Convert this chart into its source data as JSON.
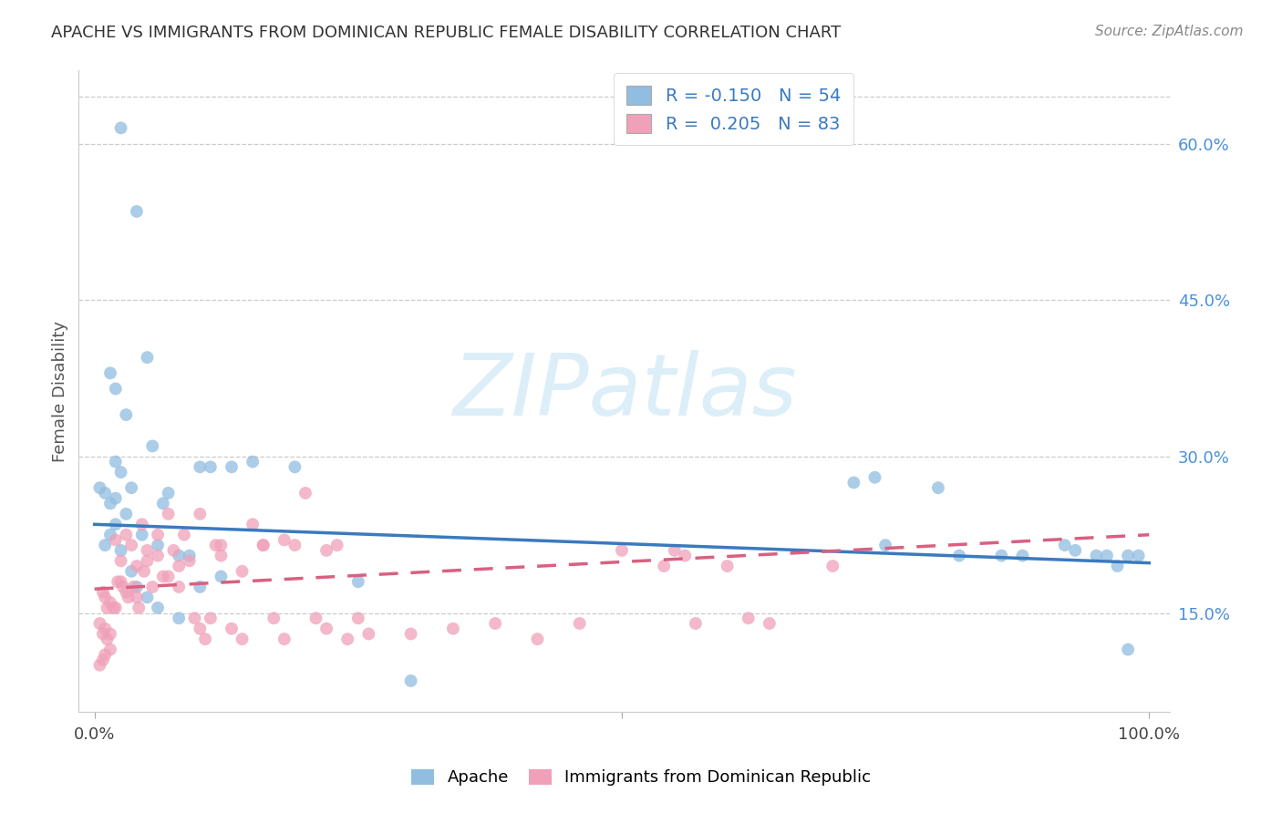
{
  "title": "APACHE VS IMMIGRANTS FROM DOMINICAN REPUBLIC FEMALE DISABILITY CORRELATION CHART",
  "source": "Source: ZipAtlas.com",
  "ylabel": "Female Disability",
  "yticks": [
    "15.0%",
    "30.0%",
    "45.0%",
    "60.0%"
  ],
  "ytick_vals": [
    0.15,
    0.3,
    0.45,
    0.6
  ],
  "xlim": [
    -0.015,
    1.02
  ],
  "ylim": [
    0.055,
    0.67
  ],
  "series1_color": "#90bde0",
  "series2_color": "#f0a0b8",
  "trendline1_color": "#3a7abf",
  "trendline2_color": "#d96080",
  "watermark_text": "ZIPatlas",
  "watermark_color": "#dceef8",
  "legend1_label": "R = -0.150   N = 54",
  "legend2_label": "R =  0.205   N = 83",
  "legend_text_color": "#3a7abf",
  "bottom_label1": "Apache",
  "bottom_label2": "Immigrants from Dominican Republic",
  "apache_x": [
    0.025,
    0.04,
    0.015,
    0.02,
    0.03,
    0.05,
    0.055,
    0.02,
    0.025,
    0.035,
    0.02,
    0.015,
    0.03,
    0.02,
    0.045,
    0.06,
    0.065,
    0.07,
    0.08,
    0.09,
    0.1,
    0.11,
    0.13,
    0.15,
    0.19,
    0.005,
    0.01,
    0.015,
    0.01,
    0.025,
    0.035,
    0.04,
    0.05,
    0.06,
    0.08,
    0.1,
    0.12,
    0.25,
    0.3,
    0.72,
    0.74,
    0.75,
    0.8,
    0.82,
    0.86,
    0.88,
    0.92,
    0.93,
    0.95,
    0.96,
    0.97,
    0.98,
    0.98,
    0.99
  ],
  "apache_y": [
    0.615,
    0.535,
    0.38,
    0.365,
    0.34,
    0.395,
    0.31,
    0.295,
    0.285,
    0.27,
    0.26,
    0.255,
    0.245,
    0.235,
    0.225,
    0.215,
    0.255,
    0.265,
    0.205,
    0.205,
    0.29,
    0.29,
    0.29,
    0.295,
    0.29,
    0.27,
    0.265,
    0.225,
    0.215,
    0.21,
    0.19,
    0.175,
    0.165,
    0.155,
    0.145,
    0.175,
    0.185,
    0.18,
    0.085,
    0.275,
    0.28,
    0.215,
    0.27,
    0.205,
    0.205,
    0.205,
    0.215,
    0.21,
    0.205,
    0.205,
    0.195,
    0.205,
    0.115,
    0.205
  ],
  "dr_x": [
    0.005,
    0.008,
    0.01,
    0.012,
    0.015,
    0.008,
    0.01,
    0.012,
    0.015,
    0.018,
    0.02,
    0.022,
    0.025,
    0.027,
    0.03,
    0.032,
    0.035,
    0.037,
    0.04,
    0.042,
    0.045,
    0.047,
    0.05,
    0.055,
    0.06,
    0.065,
    0.07,
    0.075,
    0.08,
    0.085,
    0.09,
    0.095,
    0.1,
    0.105,
    0.11,
    0.115,
    0.12,
    0.13,
    0.14,
    0.15,
    0.16,
    0.17,
    0.18,
    0.19,
    0.2,
    0.21,
    0.22,
    0.23,
    0.24,
    0.25,
    0.005,
    0.008,
    0.01,
    0.015,
    0.02,
    0.025,
    0.03,
    0.04,
    0.05,
    0.06,
    0.07,
    0.08,
    0.1,
    0.12,
    0.14,
    0.16,
    0.18,
    0.22,
    0.26,
    0.3,
    0.34,
    0.38,
    0.42,
    0.46,
    0.5,
    0.54,
    0.55,
    0.56,
    0.57,
    0.6,
    0.62,
    0.64,
    0.7
  ],
  "dr_y": [
    0.14,
    0.13,
    0.135,
    0.125,
    0.13,
    0.17,
    0.165,
    0.155,
    0.16,
    0.155,
    0.22,
    0.18,
    0.2,
    0.175,
    0.225,
    0.165,
    0.215,
    0.175,
    0.165,
    0.155,
    0.235,
    0.19,
    0.2,
    0.175,
    0.205,
    0.185,
    0.245,
    0.21,
    0.195,
    0.225,
    0.2,
    0.145,
    0.135,
    0.125,
    0.145,
    0.215,
    0.205,
    0.135,
    0.125,
    0.235,
    0.215,
    0.145,
    0.125,
    0.215,
    0.265,
    0.145,
    0.135,
    0.215,
    0.125,
    0.145,
    0.1,
    0.105,
    0.11,
    0.115,
    0.155,
    0.18,
    0.17,
    0.195,
    0.21,
    0.225,
    0.185,
    0.175,
    0.245,
    0.215,
    0.19,
    0.215,
    0.22,
    0.21,
    0.13,
    0.13,
    0.135,
    0.14,
    0.125,
    0.14,
    0.21,
    0.195,
    0.21,
    0.205,
    0.14,
    0.195,
    0.145,
    0.14,
    0.195
  ],
  "trendline1_x0": 0.0,
  "trendline1_y0": 0.235,
  "trendline1_x1": 1.0,
  "trendline1_y1": 0.198,
  "trendline2_x0": 0.0,
  "trendline2_y0": 0.173,
  "trendline2_x1": 1.0,
  "trendline2_y1": 0.225
}
